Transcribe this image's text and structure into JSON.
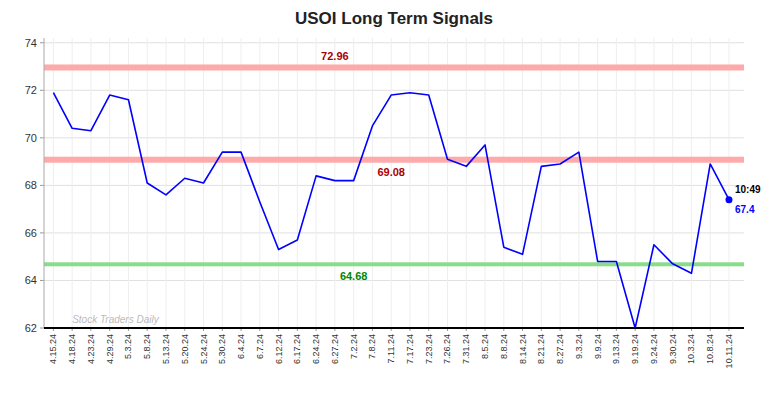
{
  "chart_data": {
    "type": "line",
    "title": "USOI Long Term Signals",
    "categories": [
      "4.15.24",
      "4.18.24",
      "4.23.24",
      "4.29.24",
      "5.3.24",
      "5.8.24",
      "5.13.24",
      "5.20.24",
      "5.24.24",
      "5.30.24",
      "6.4.24",
      "6.7.24",
      "6.12.24",
      "6.17.24",
      "6.24.24",
      "6.27.24",
      "7.2.24",
      "7.8.24",
      "7.11.24",
      "7.17.24",
      "7.23.24",
      "7.26.24",
      "7.31.24",
      "8.5.24",
      "8.8.24",
      "8.14.24",
      "8.21.24",
      "8.27.24",
      "9.3.24",
      "9.9.24",
      "9.13.24",
      "9.19.24",
      "9.24.24",
      "9.30.24",
      "10.3.24",
      "10.8.24",
      "10.11.24"
    ],
    "values": [
      71.9,
      70.4,
      70.3,
      71.8,
      71.6,
      68.1,
      67.6,
      68.3,
      68.1,
      69.4,
      69.4,
      67.3,
      65.3,
      65.7,
      68.4,
      68.2,
      68.2,
      70.5,
      71.8,
      71.9,
      71.8,
      69.1,
      68.8,
      69.7,
      65.4,
      65.1,
      68.8,
      68.9,
      69.4,
      64.8,
      64.8,
      62.0,
      65.5,
      64.7,
      64.3,
      68.9,
      67.4
    ],
    "color": "blue",
    "ylim": [
      62,
      74.2
    ],
    "yticks": [
      62,
      64,
      66,
      68,
      70,
      72,
      74
    ],
    "grid": true,
    "bands": [
      {
        "value": 72.96,
        "color": "#ffaaaa",
        "label_color": "#aa0000"
      },
      {
        "value": 69.08,
        "color": "#ffaaaa",
        "label_color": "#aa0000"
      },
      {
        "value": 64.68,
        "color": "#88dd88",
        "label_color": "#008800"
      }
    ],
    "last_point": {
      "time": "10:49",
      "value": 67.4
    },
    "watermark": "Stock Traders Daily"
  }
}
